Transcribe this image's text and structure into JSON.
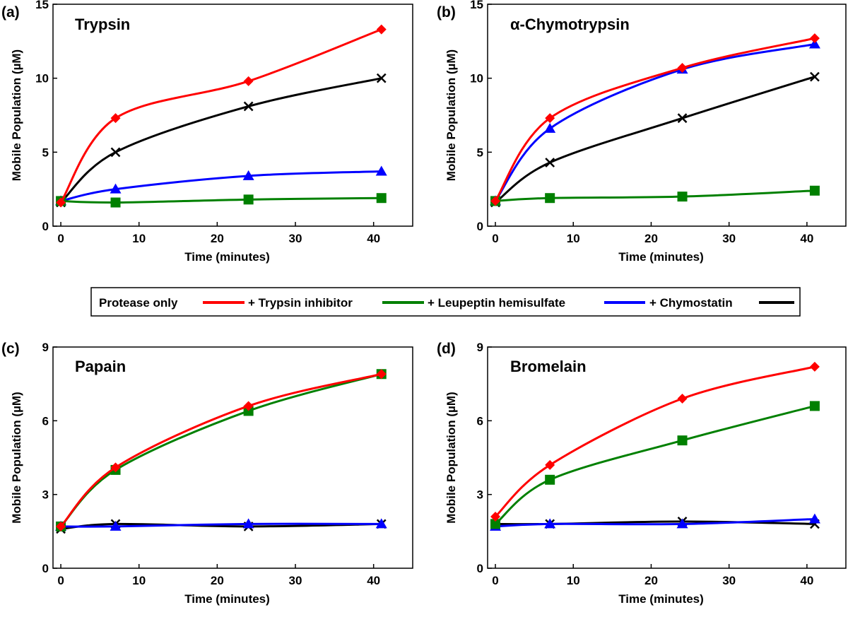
{
  "legend": {
    "entries": [
      {
        "label": "Protease only",
        "color": "#ff0000"
      },
      {
        "label": "+ Trypsin inhibitor",
        "color": "#008000"
      },
      {
        "label": "+ Leupeptin hemisulfate",
        "color": "#0000ff"
      },
      {
        "label": "+ Chymostatin",
        "color": "#000000"
      }
    ],
    "placement": "center"
  },
  "chart_data": [
    {
      "type": "line",
      "panel_tag": "(a)",
      "title": "Trypsin",
      "xlabel": "Time (minutes)",
      "ylabel": "Mobile Population (µM)",
      "xlim": [
        -1,
        45
      ],
      "ylim": [
        0,
        15
      ],
      "xticks": [
        0,
        10,
        20,
        30,
        40
      ],
      "yticks": [
        0,
        5,
        10,
        15
      ],
      "x": [
        0,
        7,
        24,
        41
      ],
      "series": [
        {
          "name": "Protease only",
          "color": "#ff0000",
          "marker": "diamond",
          "values": [
            1.6,
            7.3,
            9.8,
            13.3
          ]
        },
        {
          "name": "+ Trypsin inhibitor",
          "color": "#008000",
          "marker": "square",
          "values": [
            1.7,
            1.6,
            1.8,
            1.9
          ]
        },
        {
          "name": "+ Leupeptin hemisulfate",
          "color": "#0000ff",
          "marker": "triangle",
          "values": [
            1.7,
            2.5,
            3.4,
            3.7
          ]
        },
        {
          "name": "+ Chymostatin",
          "color": "#000000",
          "marker": "x",
          "values": [
            1.6,
            5.0,
            8.1,
            10.0
          ]
        }
      ]
    },
    {
      "type": "line",
      "panel_tag": "(b)",
      "title": "α-Chymotrypsin",
      "xlabel": "Time (minutes)",
      "ylabel": "Mobile Population (µM)",
      "xlim": [
        -1,
        45
      ],
      "ylim": [
        0,
        15
      ],
      "xticks": [
        0,
        10,
        20,
        30,
        40
      ],
      "yticks": [
        0,
        5,
        10,
        15
      ],
      "x": [
        0,
        7,
        24,
        41
      ],
      "series": [
        {
          "name": "Protease only",
          "color": "#ff0000",
          "marker": "diamond",
          "values": [
            1.7,
            7.3,
            10.7,
            12.7
          ]
        },
        {
          "name": "+ Trypsin inhibitor",
          "color": "#008000",
          "marker": "square",
          "values": [
            1.7,
            1.9,
            2.0,
            2.4
          ]
        },
        {
          "name": "+ Leupeptin hemisulfate",
          "color": "#0000ff",
          "marker": "triangle",
          "values": [
            1.7,
            6.6,
            10.6,
            12.3
          ]
        },
        {
          "name": "+ Chymostatin",
          "color": "#000000",
          "marker": "x",
          "values": [
            1.6,
            4.3,
            7.3,
            10.1
          ]
        }
      ]
    },
    {
      "type": "line",
      "panel_tag": "(c)",
      "title": "Papain",
      "xlabel": "Time (minutes)",
      "ylabel": "Mobile Population (µM)",
      "xlim": [
        -1,
        45
      ],
      "ylim": [
        0,
        9
      ],
      "xticks": [
        0,
        10,
        20,
        30,
        40
      ],
      "yticks": [
        0,
        3,
        6,
        9
      ],
      "x": [
        0,
        7,
        24,
        41
      ],
      "series": [
        {
          "name": "Protease only",
          "color": "#ff0000",
          "marker": "diamond",
          "values": [
            1.7,
            4.1,
            6.6,
            7.9
          ]
        },
        {
          "name": "+ Trypsin inhibitor",
          "color": "#008000",
          "marker": "square",
          "values": [
            1.7,
            4.0,
            6.4,
            7.9
          ]
        },
        {
          "name": "+ Leupeptin hemisulfate",
          "color": "#0000ff",
          "marker": "triangle",
          "values": [
            1.7,
            1.7,
            1.8,
            1.8
          ]
        },
        {
          "name": "+ Chymostatin",
          "color": "#000000",
          "marker": "x",
          "values": [
            1.6,
            1.8,
            1.7,
            1.8
          ]
        }
      ]
    },
    {
      "type": "line",
      "panel_tag": "(d)",
      "title": "Bromelain",
      "xlabel": "Time (minutes)",
      "ylabel": "Mobile Population (µM)",
      "xlim": [
        -1,
        45
      ],
      "ylim": [
        0,
        9
      ],
      "xticks": [
        0,
        10,
        20,
        30,
        40
      ],
      "yticks": [
        0,
        3,
        6,
        9
      ],
      "x": [
        0,
        7,
        24,
        41
      ],
      "series": [
        {
          "name": "Protease only",
          "color": "#ff0000",
          "marker": "diamond",
          "values": [
            2.1,
            4.2,
            6.9,
            8.2
          ]
        },
        {
          "name": "+ Trypsin inhibitor",
          "color": "#008000",
          "marker": "square",
          "values": [
            1.8,
            3.6,
            5.2,
            6.6
          ]
        },
        {
          "name": "+ Leupeptin hemisulfate",
          "color": "#0000ff",
          "marker": "triangle",
          "values": [
            1.7,
            1.8,
            1.8,
            2.0
          ]
        },
        {
          "name": "+ Chymostatin",
          "color": "#000000",
          "marker": "x",
          "values": [
            1.8,
            1.8,
            1.9,
            1.8
          ]
        }
      ]
    }
  ]
}
